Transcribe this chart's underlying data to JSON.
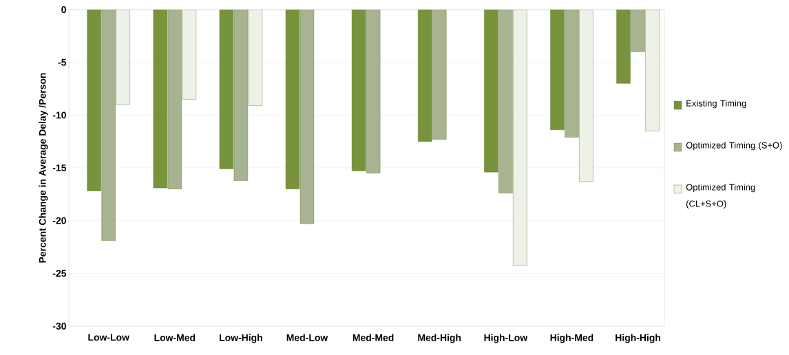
{
  "chart_data": {
    "type": "bar",
    "ylabel": "Percent  Change in Average Delay /Person",
    "categories": [
      "Low-Low",
      "Low-Med",
      "Low-High",
      "Med-Low",
      "Med-Med",
      "Med-High",
      "High-Low",
      "High-Med",
      "High-High"
    ],
    "series": [
      {
        "name": "Existing Timing",
        "color": "#77933c",
        "values": [
          -17.2,
          -16.9,
          -15.1,
          -17.0,
          -15.3,
          -12.5,
          -15.4,
          -11.4,
          -7.0
        ]
      },
      {
        "name": "Optimized Timing (S+O)",
        "color": "#a7b391",
        "values": [
          -21.9,
          -17.0,
          -16.2,
          -20.3,
          -15.5,
          -12.3,
          -17.4,
          -12.1,
          -4.0
        ]
      },
      {
        "name": "Optimized Timing (CL+S+O)",
        "color": "#eef1e6",
        "values": [
          -9.0,
          -8.5,
          -9.1,
          null,
          null,
          null,
          -24.3,
          -16.3,
          -11.5
        ]
      }
    ],
    "ylim": [
      -30,
      0
    ],
    "yticks": [
      -30,
      -25,
      -20,
      -15,
      -10,
      -5,
      0
    ],
    "grid": "y",
    "legend": "right"
  }
}
